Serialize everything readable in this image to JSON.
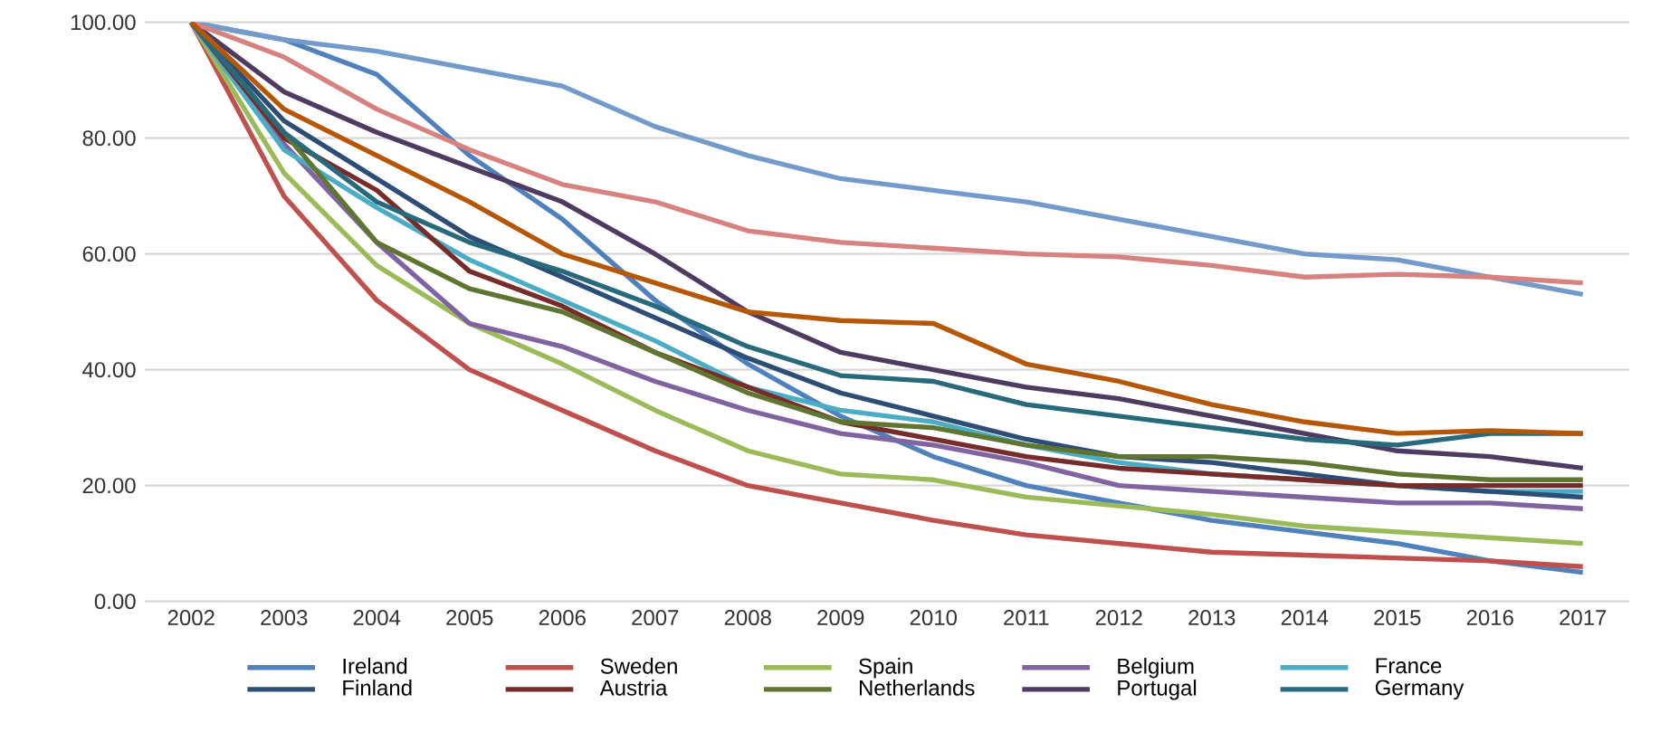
{
  "chart_data": {
    "type": "line",
    "categories": [
      "2002",
      "2003",
      "2004",
      "2005",
      "2006",
      "2007",
      "2008",
      "2009",
      "2010",
      "2011",
      "2012",
      "2013",
      "2014",
      "2015",
      "2016",
      "2017"
    ],
    "ylim": [
      0,
      100
    ],
    "yticks": [
      {
        "value": 0,
        "label": "0.00"
      },
      {
        "value": 20,
        "label": "20.00"
      },
      {
        "value": 40,
        "label": "40.00"
      },
      {
        "value": 60,
        "label": "60.00"
      },
      {
        "value": 80,
        "label": "80.00"
      },
      {
        "value": 100,
        "label": "100.00"
      }
    ],
    "grid": "y",
    "legend": "bottom",
    "marker": "none",
    "line_style": "solid",
    "series": [
      {
        "name": "Ireland",
        "color": "#4f81bd",
        "values": [
          100,
          97,
          91,
          77,
          66,
          52,
          41,
          32,
          25,
          20,
          17,
          14,
          12,
          10,
          7,
          5
        ]
      },
      {
        "name": "Sweden",
        "color": "#c0504d",
        "values": [
          100,
          70,
          52,
          40,
          33,
          26,
          20,
          17,
          14,
          11.5,
          10,
          8.5,
          8,
          7.5,
          7,
          6
        ]
      },
      {
        "name": "Spain",
        "color": "#9bbb59",
        "values": [
          100,
          74,
          58,
          48,
          41,
          33,
          26,
          22,
          21,
          18,
          16.5,
          15,
          13,
          12,
          11,
          10
        ]
      },
      {
        "name": "Belgium",
        "color": "#8064a2",
        "values": [
          100,
          79,
          62,
          48,
          44,
          38,
          33,
          29,
          27,
          24,
          20,
          19,
          18,
          17,
          17,
          16
        ]
      },
      {
        "name": "France",
        "color": "#4bacc6",
        "values": [
          100,
          78,
          68,
          59,
          52,
          45,
          37,
          33,
          31,
          27,
          24,
          22,
          21,
          20,
          19,
          19
        ]
      },
      {
        "name": "Finland",
        "color": "#2c4d75",
        "values": [
          100,
          83,
          73,
          63,
          56,
          49,
          42,
          36,
          32,
          28,
          25,
          24,
          22,
          20,
          19,
          18
        ]
      },
      {
        "name": "Austria",
        "color": "#772c2a",
        "values": [
          100,
          80,
          71,
          57,
          51,
          43,
          37,
          31,
          28,
          25,
          23,
          22,
          21,
          20,
          20,
          20
        ]
      },
      {
        "name": "Netherlands",
        "color": "#5f7530",
        "values": [
          100,
          81,
          62,
          54,
          50,
          43,
          36,
          31,
          30,
          27,
          25,
          25,
          24,
          22,
          21,
          21
        ]
      },
      {
        "name": "Portugal",
        "color": "#4d3b62",
        "values": [
          100,
          88,
          81,
          75,
          69,
          60,
          50,
          43,
          40,
          37,
          35,
          32,
          29,
          26,
          25,
          23
        ]
      },
      {
        "name": "Germany",
        "color": "#276a7c",
        "values": [
          100,
          81,
          69,
          62,
          57,
          51,
          44,
          39,
          38,
          34,
          32,
          30,
          28,
          27,
          29,
          29
        ]
      },
      {
        "color": "#729aca",
        "values": [
          100,
          97,
          95,
          92,
          89,
          82,
          77,
          73,
          71,
          69,
          66,
          63,
          60,
          59,
          56,
          53
        ]
      },
      {
        "color": "#d7827f",
        "values": [
          100,
          94,
          85,
          78,
          72,
          69,
          64,
          62,
          61,
          60,
          59.5,
          58,
          56,
          56.5,
          56,
          55
        ]
      },
      {
        "color": "#b65708",
        "values": [
          100,
          85,
          77,
          69,
          60,
          55,
          50,
          48.5,
          48,
          41,
          38,
          34,
          31,
          29,
          29.5,
          29
        ]
      }
    ]
  }
}
